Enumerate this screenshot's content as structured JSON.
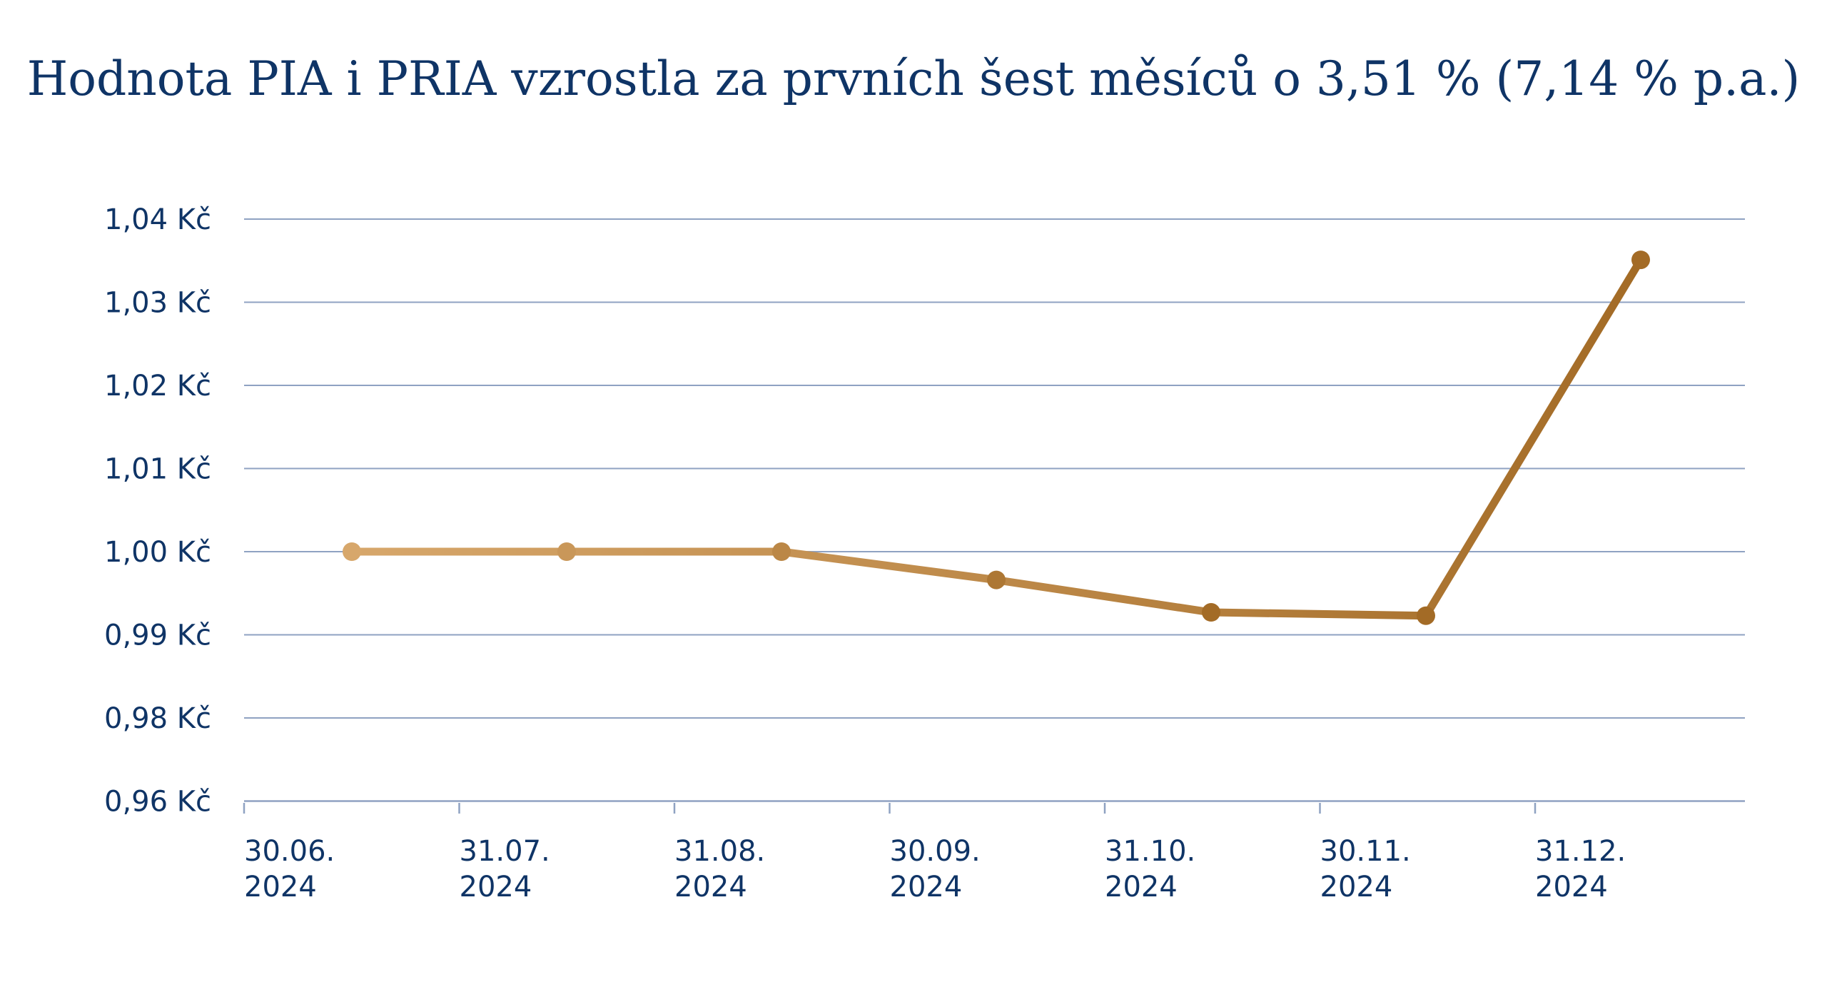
{
  "chart_data": {
    "type": "line",
    "title": "Hodnota PIA i PRIA vzrostla za prvních šest měsíců o 3,51 % (7,14 % p.a.)",
    "xlabel": "",
    "ylabel": "",
    "x_ticks": [
      {
        "line1": "30.06.",
        "line2": "2024"
      },
      {
        "line1": "31.07.",
        "line2": "2024"
      },
      {
        "line1": "31.08.",
        "line2": "2024"
      },
      {
        "line1": "30.09.",
        "line2": "2024"
      },
      {
        "line1": "31.10.",
        "line2": "2024"
      },
      {
        "line1": "30.11.",
        "line2": "2024"
      },
      {
        "line1": "31.12.",
        "line2": "2024"
      }
    ],
    "y_ticks": [
      {
        "value": 1.04,
        "label": "1,04 Kč"
      },
      {
        "value": 1.03,
        "label": "1,03 Kč"
      },
      {
        "value": 1.02,
        "label": "1,02 Kč"
      },
      {
        "value": 1.01,
        "label": "1,01 Kč"
      },
      {
        "value": 1.0,
        "label": "1,00 Kč"
      },
      {
        "value": 0.99,
        "label": "0,99 Kč"
      },
      {
        "value": 0.98,
        "label": "0,98 Kč"
      },
      {
        "value": 0.96,
        "label": "0,96 Kč"
      }
    ],
    "series": [
      {
        "values": [
          1.0,
          1.0,
          1.0,
          0.9966,
          0.9927,
          0.9923,
          1.0351
        ]
      }
    ],
    "grid": true,
    "legend": "none",
    "colors": {
      "line_start": "#d7a76b",
      "line_end": "#a36b26",
      "grid": "#8fa2c2",
      "text": "#0f3466"
    }
  }
}
